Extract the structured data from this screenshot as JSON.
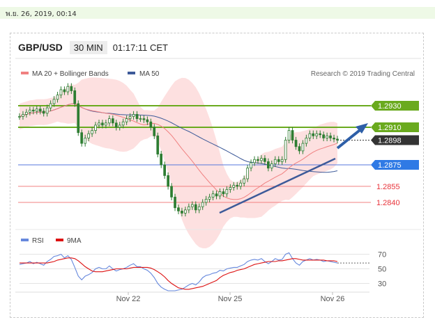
{
  "timestamp": "พ.ย. 26, 2019, 00:14",
  "header": {
    "pair": "GBP/USD",
    "timeframe": "30 MIN",
    "clock": "01:17:11 CET"
  },
  "legend": {
    "ma20": "MA 20 + Bollinger Bands",
    "ma50": "MA 50",
    "research": "Research © 2019 Trading Central"
  },
  "rsi_legend": {
    "rsi": "RSI",
    "ma9": "9MA"
  },
  "colors": {
    "candle": "#2e7d32",
    "ma20": "#f08080",
    "ma50": "#3d5a99",
    "bollinger": "#fde0e0",
    "support_line": "#5577dd",
    "green_level": "#6aaa1e",
    "red_level": "#f28080",
    "trend_arrow": "#2e5fa8"
  },
  "chart_data": [
    {
      "type": "candlestick",
      "title": "GBP/USD 30 MIN",
      "x_ticks": [
        "Nov 22",
        "Nov 25",
        "Nov 26"
      ],
      "ylim": [
        1.2818,
        1.2954
      ],
      "levels": [
        {
          "value": 1.293,
          "label": "1.2930",
          "kind": "resistance",
          "color": "#6aaa1e"
        },
        {
          "value": 1.291,
          "label": "1.2910",
          "kind": "resistance",
          "color": "#6aaa1e"
        },
        {
          "value": 1.2898,
          "label": "1.2898",
          "kind": "last-price",
          "color": "#333333"
        },
        {
          "value": 1.2875,
          "label": "1.2875",
          "kind": "pivot",
          "color": "#2f7ae5"
        },
        {
          "value": 1.2855,
          "label": "1.2855",
          "kind": "support",
          "color": "#e8333a"
        },
        {
          "value": 1.284,
          "label": "1.2840",
          "kind": "support",
          "color": "#e8333a"
        }
      ],
      "close": [
        1.292,
        1.2922,
        1.2924,
        1.2926,
        1.2925,
        1.2927,
        1.2925,
        1.2923,
        1.2928,
        1.2932,
        1.2936,
        1.294,
        1.2945,
        1.2943,
        1.2948,
        1.2944,
        1.2932,
        1.2905,
        1.2895,
        1.29,
        1.2904,
        1.2907,
        1.2912,
        1.2914,
        1.2912,
        1.2914,
        1.2918,
        1.2914,
        1.291,
        1.2912,
        1.2915,
        1.2918,
        1.292,
        1.2922,
        1.2918,
        1.2918,
        1.2917,
        1.2915,
        1.291,
        1.2902,
        1.2885,
        1.2875,
        1.2865,
        1.2855,
        1.2845,
        1.2835,
        1.2832,
        1.283,
        1.2833,
        1.2836,
        1.2838,
        1.2833,
        1.2836,
        1.284,
        1.2843,
        1.2845,
        1.2848,
        1.2846,
        1.285,
        1.2848,
        1.2852,
        1.2854,
        1.2856,
        1.2855,
        1.2858,
        1.2862,
        1.2872,
        1.2877,
        1.288,
        1.2879,
        1.2881,
        1.2878,
        1.2872,
        1.2876,
        1.288,
        1.2878,
        1.288,
        1.2898,
        1.2907,
        1.2898,
        1.2892,
        1.2888,
        1.2895,
        1.29,
        1.2904,
        1.2902,
        1.2904,
        1.2903,
        1.29,
        1.2902,
        1.29,
        1.2899,
        1.2898
      ],
      "ma20_label": "MA 20 + Bollinger Bands",
      "ma50_label": "MA 50"
    },
    {
      "type": "line",
      "title": "RSI",
      "yticks": [
        70,
        50,
        30
      ],
      "ylim": [
        20,
        80
      ],
      "series": [
        {
          "name": "RSI",
          "color": "#6688dd",
          "values": [
            56,
            57,
            58,
            60,
            57,
            59,
            57,
            55,
            60,
            63,
            67,
            68,
            70,
            65,
            68,
            63,
            52,
            40,
            35,
            40,
            42,
            45,
            50,
            52,
            50,
            50,
            54,
            50,
            47,
            49,
            50,
            52,
            55,
            57,
            53,
            53,
            50,
            48,
            44,
            38,
            30,
            25,
            22,
            20,
            20,
            20,
            21,
            22,
            25,
            28,
            30,
            28,
            32,
            38,
            41,
            42,
            44,
            45,
            48,
            47,
            50,
            51,
            52,
            52,
            54,
            56,
            60,
            62,
            63,
            62,
            64,
            60,
            57,
            60,
            64,
            62,
            63,
            70,
            72,
            64,
            58,
            55,
            60,
            62,
            64,
            62,
            63,
            62,
            60,
            61,
            60,
            59,
            58
          ]
        },
        {
          "name": "9MA",
          "color": "#dd1111",
          "values": [
            58,
            58,
            58,
            58,
            58,
            58,
            58,
            58,
            58,
            59,
            60,
            62,
            63,
            64,
            65,
            65,
            64,
            61,
            57,
            53,
            50,
            47,
            46,
            46,
            46,
            47,
            48,
            49,
            50,
            50,
            50,
            50,
            51,
            52,
            52,
            52,
            52,
            52,
            51,
            49,
            46,
            43,
            39,
            34,
            30,
            27,
            24,
            23,
            22,
            22,
            23,
            24,
            25,
            26,
            28,
            30,
            32,
            34,
            38,
            41,
            43,
            45,
            46,
            48,
            49,
            50,
            52,
            54,
            56,
            57,
            58,
            59,
            60,
            60,
            60,
            61,
            61,
            62,
            63,
            64,
            64,
            63,
            62,
            62,
            62,
            62,
            62,
            62,
            62,
            61,
            61,
            61,
            60
          ]
        }
      ],
      "ref_level": 58
    }
  ]
}
